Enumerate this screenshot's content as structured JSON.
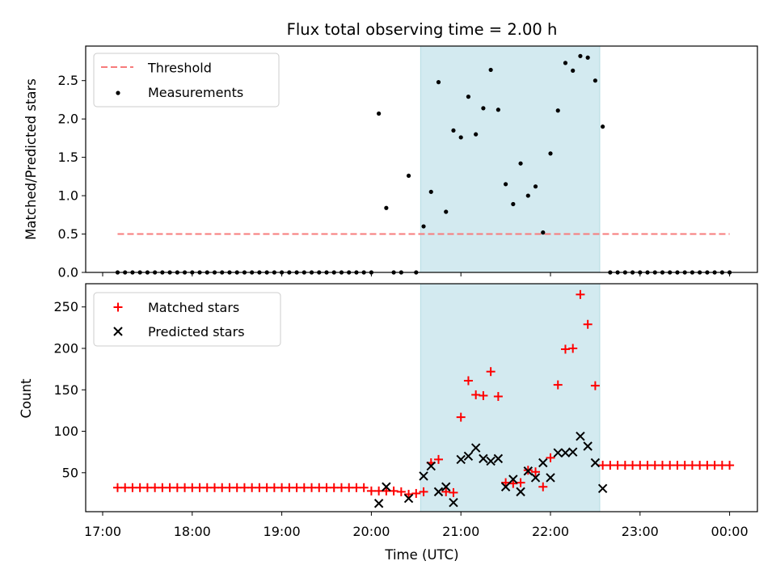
{
  "chart_data": [
    {
      "type": "scatter",
      "title": "Flux total observing time = 2.00 h",
      "ylabel": "Matched/Predicted stars",
      "xlabel": "",
      "xlim": [
        "17:00",
        "00:00"
      ],
      "ylim": [
        0,
        2.95
      ],
      "yticks": [
        "0.0",
        "0.5",
        "1.0",
        "1.5",
        "2.0",
        "2.5"
      ],
      "grid": false,
      "legend_position": "top-left",
      "shaded_interval": {
        "start": "20:33",
        "end": "22:33",
        "color": "#d3eaf0"
      },
      "threshold": {
        "name": "Threshold",
        "value": 0.5,
        "x_start": "17:10",
        "x_end": "00:00",
        "color": "#f77b7b"
      },
      "series": [
        {
          "name": "Measurements",
          "color": "#000000",
          "points": [
            [
              "17:10",
              0
            ],
            [
              "17:15",
              0
            ],
            [
              "17:20",
              0
            ],
            [
              "17:25",
              0
            ],
            [
              "17:30",
              0
            ],
            [
              "17:35",
              0
            ],
            [
              "17:40",
              0
            ],
            [
              "17:45",
              0
            ],
            [
              "17:50",
              0
            ],
            [
              "17:55",
              0
            ],
            [
              "18:00",
              0
            ],
            [
              "18:05",
              0
            ],
            [
              "18:10",
              0
            ],
            [
              "18:15",
              0
            ],
            [
              "18:20",
              0
            ],
            [
              "18:25",
              0
            ],
            [
              "18:30",
              0
            ],
            [
              "18:35",
              0
            ],
            [
              "18:40",
              0
            ],
            [
              "18:45",
              0
            ],
            [
              "18:50",
              0
            ],
            [
              "18:55",
              0
            ],
            [
              "19:00",
              0
            ],
            [
              "19:05",
              0
            ],
            [
              "19:10",
              0
            ],
            [
              "19:15",
              0
            ],
            [
              "19:20",
              0
            ],
            [
              "19:25",
              0
            ],
            [
              "19:30",
              0
            ],
            [
              "19:35",
              0
            ],
            [
              "19:40",
              0
            ],
            [
              "19:45",
              0
            ],
            [
              "19:50",
              0
            ],
            [
              "19:55",
              0
            ],
            [
              "20:00",
              0
            ],
            [
              "20:05",
              2.07
            ],
            [
              "20:10",
              0.84
            ],
            [
              "20:15",
              0
            ],
            [
              "20:20",
              0
            ],
            [
              "20:25",
              1.26
            ],
            [
              "20:30",
              0
            ],
            [
              "20:35",
              0.6
            ],
            [
              "20:40",
              1.05
            ],
            [
              "20:45",
              2.48
            ],
            [
              "20:50",
              0.79
            ],
            [
              "20:55",
              1.85
            ],
            [
              "21:00",
              1.76
            ],
            [
              "21:05",
              2.29
            ],
            [
              "21:10",
              1.8
            ],
            [
              "21:15",
              2.14
            ],
            [
              "21:20",
              2.64
            ],
            [
              "21:25",
              2.12
            ],
            [
              "21:30",
              1.15
            ],
            [
              "21:35",
              0.89
            ],
            [
              "21:40",
              1.42
            ],
            [
              "21:45",
              1.0
            ],
            [
              "21:50",
              1.12
            ],
            [
              "21:55",
              0.52
            ],
            [
              "22:00",
              1.55
            ],
            [
              "22:05",
              2.11
            ],
            [
              "22:10",
              2.73
            ],
            [
              "22:15",
              2.63
            ],
            [
              "22:20",
              2.82
            ],
            [
              "22:25",
              2.8
            ],
            [
              "22:30",
              2.5
            ],
            [
              "22:35",
              1.9
            ],
            [
              "22:40",
              0
            ],
            [
              "22:45",
              0
            ],
            [
              "22:50",
              0
            ],
            [
              "22:55",
              0
            ],
            [
              "23:00",
              0
            ],
            [
              "23:05",
              0
            ],
            [
              "23:10",
              0
            ],
            [
              "23:15",
              0
            ],
            [
              "23:20",
              0
            ],
            [
              "23:25",
              0
            ],
            [
              "23:30",
              0
            ],
            [
              "23:35",
              0
            ],
            [
              "23:40",
              0
            ],
            [
              "23:45",
              0
            ],
            [
              "23:50",
              0
            ],
            [
              "23:55",
              0
            ],
            [
              "00:00",
              0
            ]
          ]
        }
      ]
    },
    {
      "type": "scatter",
      "title": "",
      "ylabel": "Count",
      "xlabel": "Time (UTC)",
      "xticks": [
        "17:00",
        "18:00",
        "19:00",
        "20:00",
        "21:00",
        "22:00",
        "23:00",
        "00:00"
      ],
      "yticks": [
        "50",
        "100",
        "150",
        "200",
        "250"
      ],
      "ylim": [
        3,
        278
      ],
      "grid": false,
      "legend_position": "top-left",
      "series": [
        {
          "name": "Matched stars",
          "color": "#ff0000",
          "marker": "+",
          "points": [
            [
              "17:10",
              32
            ],
            [
              "17:15",
              32
            ],
            [
              "17:20",
              32
            ],
            [
              "17:25",
              32
            ],
            [
              "17:30",
              32
            ],
            [
              "17:35",
              32
            ],
            [
              "17:40",
              32
            ],
            [
              "17:45",
              32
            ],
            [
              "17:50",
              32
            ],
            [
              "17:55",
              32
            ],
            [
              "18:00",
              32
            ],
            [
              "18:05",
              32
            ],
            [
              "18:10",
              32
            ],
            [
              "18:15",
              32
            ],
            [
              "18:20",
              32
            ],
            [
              "18:25",
              32
            ],
            [
              "18:30",
              32
            ],
            [
              "18:35",
              32
            ],
            [
              "18:40",
              32
            ],
            [
              "18:45",
              32
            ],
            [
              "18:50",
              32
            ],
            [
              "18:55",
              32
            ],
            [
              "19:00",
              32
            ],
            [
              "19:05",
              32
            ],
            [
              "19:10",
              32
            ],
            [
              "19:15",
              32
            ],
            [
              "19:20",
              32
            ],
            [
              "19:25",
              32
            ],
            [
              "19:30",
              32
            ],
            [
              "19:35",
              32
            ],
            [
              "19:40",
              32
            ],
            [
              "19:45",
              32
            ],
            [
              "19:50",
              32
            ],
            [
              "19:55",
              32
            ],
            [
              "20:00",
              28
            ],
            [
              "20:05",
              28
            ],
            [
              "20:10",
              28
            ],
            [
              "20:15",
              28
            ],
            [
              "20:20",
              27
            ],
            [
              "20:25",
              24
            ],
            [
              "20:30",
              25
            ],
            [
              "20:35",
              27
            ],
            [
              "20:40",
              62
            ],
            [
              "20:45",
              66
            ],
            [
              "20:50",
              27
            ],
            [
              "20:55",
              26
            ],
            [
              "21:00",
              117
            ],
            [
              "21:05",
              161
            ],
            [
              "21:10",
              144
            ],
            [
              "21:15",
              143
            ],
            [
              "21:20",
              172
            ],
            [
              "21:25",
              142
            ],
            [
              "21:30",
              38
            ],
            [
              "21:35",
              37
            ],
            [
              "21:40",
              38
            ],
            [
              "21:45",
              53
            ],
            [
              "21:50",
              51
            ],
            [
              "21:55",
              33
            ],
            [
              "22:00",
              68
            ],
            [
              "22:05",
              156
            ],
            [
              "22:10",
              199
            ],
            [
              "22:15",
              200
            ],
            [
              "22:20",
              265
            ],
            [
              "22:25",
              229
            ],
            [
              "22:30",
              155
            ],
            [
              "22:35",
              59
            ],
            [
              "22:40",
              59
            ],
            [
              "22:45",
              59
            ],
            [
              "22:50",
              59
            ],
            [
              "22:55",
              59
            ],
            [
              "23:00",
              59
            ],
            [
              "23:05",
              59
            ],
            [
              "23:10",
              59
            ],
            [
              "23:15",
              59
            ],
            [
              "23:20",
              59
            ],
            [
              "23:25",
              59
            ],
            [
              "23:30",
              59
            ],
            [
              "23:35",
              59
            ],
            [
              "23:40",
              59
            ],
            [
              "23:45",
              59
            ],
            [
              "23:50",
              59
            ],
            [
              "23:55",
              59
            ],
            [
              "00:00",
              59
            ]
          ]
        },
        {
          "name": "Predicted stars",
          "color": "#000000",
          "marker": "x",
          "points": [
            [
              "20:05",
              13
            ],
            [
              "20:10",
              33
            ],
            [
              "20:25",
              19
            ],
            [
              "20:35",
              46
            ],
            [
              "20:40",
              58
            ],
            [
              "20:45",
              27
            ],
            [
              "20:50",
              33
            ],
            [
              "20:55",
              14
            ],
            [
              "21:00",
              66
            ],
            [
              "21:05",
              70
            ],
            [
              "21:10",
              80
            ],
            [
              "21:15",
              67
            ],
            [
              "21:20",
              64
            ],
            [
              "21:25",
              67
            ],
            [
              "21:30",
              33
            ],
            [
              "21:35",
              42
            ],
            [
              "21:40",
              27
            ],
            [
              "21:45",
              52
            ],
            [
              "21:50",
              44
            ],
            [
              "21:55",
              62
            ],
            [
              "22:00",
              44
            ],
            [
              "22:05",
              74
            ],
            [
              "22:10",
              74
            ],
            [
              "22:15",
              75
            ],
            [
              "22:20",
              94
            ],
            [
              "22:25",
              82
            ],
            [
              "22:30",
              62
            ],
            [
              "22:35",
              31
            ]
          ]
        }
      ]
    }
  ]
}
